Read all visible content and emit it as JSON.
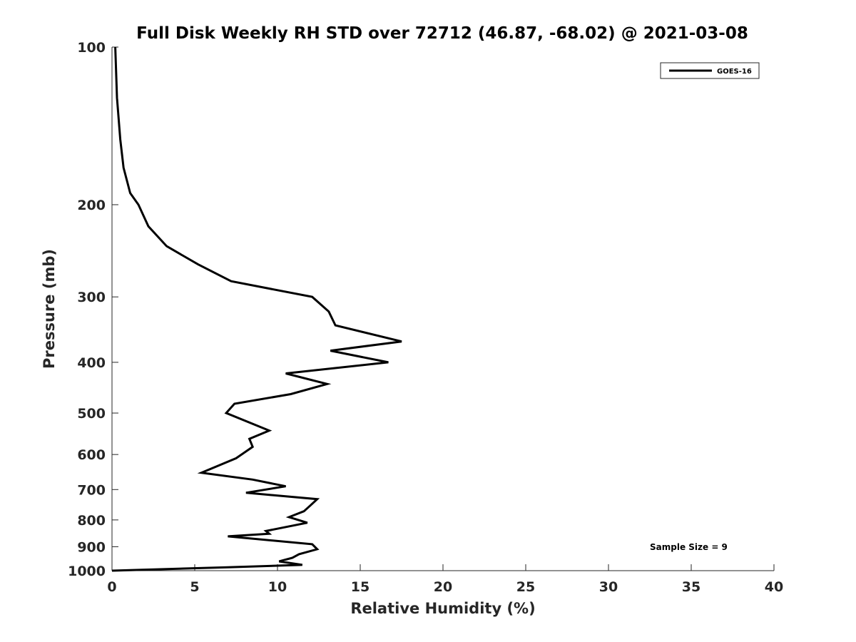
{
  "chart_data": {
    "type": "line",
    "title": "Full Disk Weekly RH STD over 72712 (46.87, -68.02) @ 2021-03-08",
    "xlabel": "Relative Humidity (%)",
    "ylabel": "Pressure (mb)",
    "xlim": [
      0,
      40
    ],
    "ylim": [
      100,
      1000
    ],
    "y_scale": "log",
    "y_reversed": true,
    "xticks": [
      0,
      5,
      10,
      15,
      20,
      25,
      30,
      35,
      40
    ],
    "yticks": [
      100,
      200,
      300,
      400,
      500,
      600,
      700,
      800,
      900,
      1000
    ],
    "grid": false,
    "legend": "top-right",
    "annotation": "Sample Size = 9",
    "series": [
      {
        "name": "GOES-16",
        "color": "#000000",
        "points": [
          [
            0.2,
            100
          ],
          [
            0.3,
            125
          ],
          [
            0.5,
            150
          ],
          [
            0.7,
            170
          ],
          [
            1.1,
            190
          ],
          [
            1.6,
            200
          ],
          [
            2.2,
            220
          ],
          [
            3.3,
            240
          ],
          [
            5.2,
            260
          ],
          [
            7.2,
            280
          ],
          [
            12.1,
            300
          ],
          [
            13.1,
            320
          ],
          [
            13.5,
            340
          ],
          [
            17.5,
            365
          ],
          [
            13.2,
            380
          ],
          [
            16.7,
            400
          ],
          [
            10.5,
            420
          ],
          [
            13.0,
            440
          ],
          [
            10.8,
            460
          ],
          [
            7.4,
            480
          ],
          [
            6.9,
            500
          ],
          [
            9.5,
            540
          ],
          [
            8.3,
            560
          ],
          [
            8.5,
            580
          ],
          [
            7.5,
            610
          ],
          [
            5.4,
            650
          ],
          [
            8.5,
            670
          ],
          [
            10.5,
            690
          ],
          [
            8.1,
            710
          ],
          [
            12.4,
            730
          ],
          [
            12.0,
            750
          ],
          [
            11.6,
            770
          ],
          [
            10.7,
            790
          ],
          [
            11.8,
            810
          ],
          [
            9.3,
            840
          ],
          [
            9.5,
            850
          ],
          [
            7.0,
            860
          ],
          [
            12.1,
            890
          ],
          [
            12.4,
            910
          ],
          [
            11.3,
            930
          ],
          [
            10.9,
            945
          ],
          [
            10.1,
            960
          ],
          [
            11.5,
            975
          ],
          [
            7.0,
            985
          ],
          [
            0.0,
            1000
          ]
        ]
      }
    ]
  }
}
